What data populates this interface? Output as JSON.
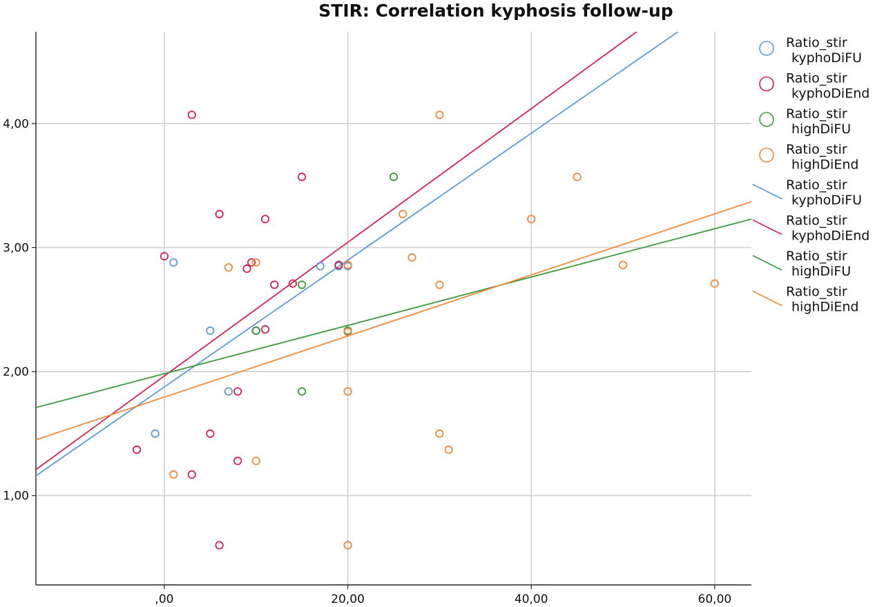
{
  "chart_data": {
    "type": "scatter",
    "title": "STIR: Correlation kyphosis follow-up",
    "xlabel": "",
    "ylabel": "",
    "xlim": [
      -14,
      64
    ],
    "ylim": [
      0.28,
      4.74
    ],
    "grid": true,
    "legend_position": "right",
    "x_ticks": [
      0,
      20,
      40,
      60
    ],
    "x_tick_labels": [
      ",00",
      "20,00",
      "40,00",
      "60,00"
    ],
    "y_ticks": [
      1,
      2,
      3,
      4
    ],
    "y_tick_labels": [
      "1,00",
      "2,00",
      "3,00",
      "4,00"
    ],
    "series": [
      {
        "name": "Ratio_stir kyphoDiFU",
        "color": "#5b9bd5",
        "points": [
          [
            1,
            2.88
          ],
          [
            5,
            2.33
          ],
          [
            -1,
            1.5
          ],
          [
            7,
            1.84
          ],
          [
            10,
            2.33
          ],
          [
            17,
            2.85
          ],
          [
            19,
            2.85
          ],
          [
            20,
            2.85
          ]
        ],
        "fit_line": [
          [
            -14,
            1.16
          ],
          [
            56,
            4.74
          ]
        ]
      },
      {
        "name": "Ratio_stir kyphoDiEnd",
        "color": "#d62050",
        "points": [
          [
            3,
            4.07
          ],
          [
            0,
            2.93
          ],
          [
            6,
            3.27
          ],
          [
            11,
            3.23
          ],
          [
            15,
            3.57
          ],
          [
            9,
            2.83
          ],
          [
            9.5,
            2.88
          ],
          [
            12,
            2.7
          ],
          [
            14,
            2.71
          ],
          [
            11,
            2.34
          ],
          [
            10,
            2.33
          ],
          [
            8,
            1.84
          ],
          [
            5,
            1.5
          ],
          [
            -3,
            1.37
          ],
          [
            3,
            1.17
          ],
          [
            8,
            1.28
          ],
          [
            6,
            0.6
          ],
          [
            19,
            2.86
          ]
        ],
        "fit_line": [
          [
            -14,
            1.21
          ],
          [
            51.5,
            4.74
          ]
        ]
      },
      {
        "name": "Ratio_stir highDiFU",
        "color": "#3a9a3a",
        "points": [
          [
            25,
            3.57
          ],
          [
            15,
            2.7
          ],
          [
            15,
            1.84
          ],
          [
            10,
            2.33
          ],
          [
            20,
            2.33
          ]
        ],
        "fit_line": [
          [
            -14,
            1.71
          ],
          [
            64,
            3.23
          ]
        ]
      },
      {
        "name": "Ratio_stir highDiEnd",
        "color": "#f0893a",
        "points": [
          [
            30,
            4.07
          ],
          [
            45,
            3.57
          ],
          [
            40,
            3.23
          ],
          [
            26,
            3.27
          ],
          [
            27,
            2.92
          ],
          [
            7,
            2.84
          ],
          [
            10,
            2.88
          ],
          [
            20,
            2.86
          ],
          [
            30,
            2.7
          ],
          [
            50,
            2.86
          ],
          [
            60,
            2.71
          ],
          [
            20,
            2.32
          ],
          [
            20,
            1.84
          ],
          [
            30,
            1.5
          ],
          [
            31,
            1.37
          ],
          [
            1,
            1.17
          ],
          [
            10,
            1.28
          ],
          [
            20,
            0.6
          ]
        ],
        "fit_line": [
          [
            -14,
            1.45
          ],
          [
            64,
            3.37
          ]
        ]
      }
    ],
    "legend": [
      {
        "label_line1": "Ratio_stir",
        "label_line2": "kyphoDiFU",
        "color": "#5b9bd5",
        "marker": "circle"
      },
      {
        "label_line1": "Ratio_stir",
        "label_line2": "kyphoDiEnd",
        "color": "#d62050",
        "marker": "circle"
      },
      {
        "label_line1": "Ratio_stir",
        "label_line2": "highDiFU",
        "color": "#3a9a3a",
        "marker": "circle"
      },
      {
        "label_line1": "Ratio_stir",
        "label_line2": "highDiEnd",
        "color": "#f0893a",
        "marker": "circle"
      },
      {
        "label_line1": "Ratio_stir",
        "label_line2": "kyphoDiFU",
        "color": "#5b9bd5",
        "marker": "line"
      },
      {
        "label_line1": "Ratio_stir",
        "label_line2": "kyphoDiEnd",
        "color": "#d62050",
        "marker": "line"
      },
      {
        "label_line1": "Ratio_stir",
        "label_line2": "highDiFU",
        "color": "#3a9a3a",
        "marker": "line"
      },
      {
        "label_line1": "Ratio_stir",
        "label_line2": "highDiEnd",
        "color": "#f0893a",
        "marker": "line"
      }
    ]
  }
}
